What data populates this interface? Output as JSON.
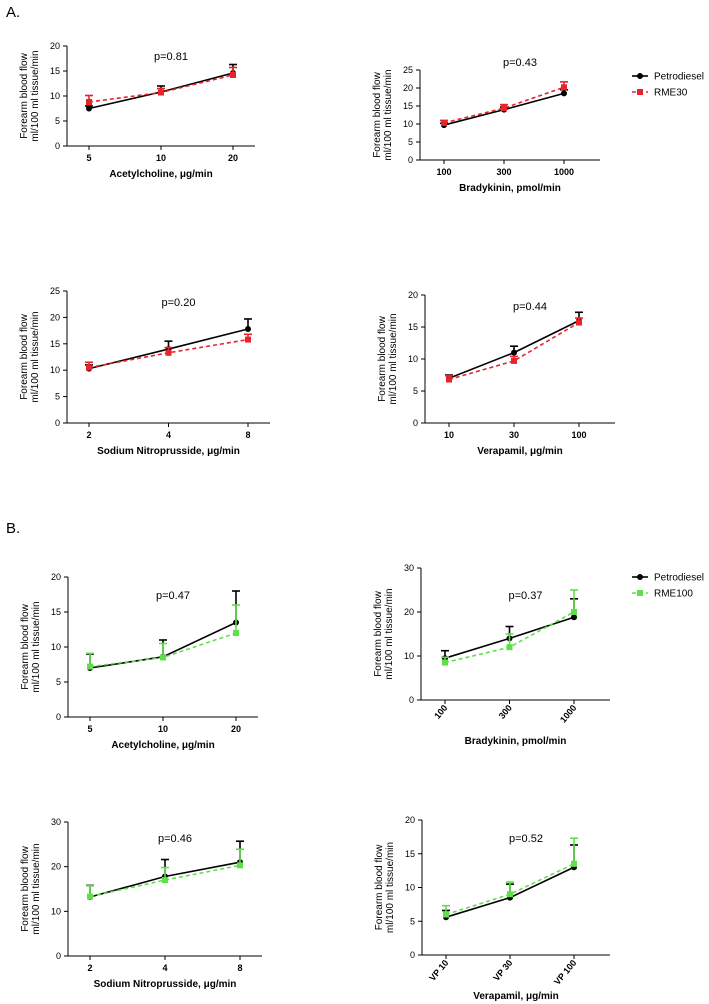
{
  "labels": {
    "section_a": "A.",
    "section_b": "B."
  },
  "colors": {
    "petrodiesel": "#000000",
    "rme30": "#e8232b",
    "rme100": "#5fe04a"
  },
  "chart_data": [
    {
      "id": "a-ach",
      "type": "line",
      "title": "p=0.81",
      "xlabel": "Acetylcholine, μg/min",
      "ylabel": [
        "Forearm blood flow",
        "ml/100 ml tissue/min"
      ],
      "categories": [
        "5",
        "10",
        "20"
      ],
      "ylim": [
        0,
        20
      ],
      "yticks": [
        0,
        5,
        10,
        15,
        20
      ],
      "series": [
        {
          "name": "Petrodiesel",
          "values": [
            7.5,
            10.8,
            14.6
          ],
          "errors": [
            0.5,
            1.2,
            1.7
          ]
        },
        {
          "name": "RME30",
          "values": [
            8.8,
            10.7,
            14.2
          ],
          "errors": [
            1.3,
            0.8,
            1.5
          ]
        }
      ]
    },
    {
      "id": "a-bk",
      "type": "line",
      "title": "p=0.43",
      "xlabel": "Bradykinin, pmol/min",
      "ylabel": [
        "Forearm blood flow",
        "ml/100 ml tissue/min"
      ],
      "categories": [
        "100",
        "300",
        "1000"
      ],
      "ylim": [
        0,
        25
      ],
      "yticks": [
        0,
        5,
        10,
        15,
        20,
        25
      ],
      "legend": [
        "Petrodiesel",
        "RME30"
      ],
      "series": [
        {
          "name": "Petrodiesel",
          "values": [
            9.7,
            14.0,
            18.5
          ],
          "errors": [
            0.5,
            0.7,
            1.0
          ]
        },
        {
          "name": "RME30",
          "values": [
            10.3,
            14.4,
            20.2
          ],
          "errors": [
            0.7,
            1.0,
            1.5
          ]
        }
      ]
    },
    {
      "id": "a-snp",
      "type": "line",
      "title": "p=0.20",
      "xlabel": "Sodium Nitroprusside, μg/min",
      "ylabel": [
        "Forearm blood flow",
        "ml/100 ml tissue/min"
      ],
      "categories": [
        "2",
        "4",
        "8"
      ],
      "ylim": [
        0,
        25
      ],
      "yticks": [
        0,
        5,
        10,
        15,
        20,
        25
      ],
      "series": [
        {
          "name": "Petrodiesel",
          "values": [
            10.3,
            14.0,
            17.8
          ],
          "errors": [
            0.7,
            1.5,
            1.9
          ]
        },
        {
          "name": "RME30",
          "values": [
            10.5,
            13.3,
            15.8
          ],
          "errors": [
            1.0,
            1.0,
            1.0
          ]
        }
      ]
    },
    {
      "id": "a-vp",
      "type": "line",
      "title": "p=0.44",
      "xlabel": "Verapamil, μg/min",
      "ylabel": [
        "Forearm blood flow",
        "ml/100 ml tissue/min"
      ],
      "categories": [
        "10",
        "30",
        "100"
      ],
      "ylim": [
        0,
        20
      ],
      "yticks": [
        0,
        5,
        10,
        15,
        20
      ],
      "series": [
        {
          "name": "Petrodiesel",
          "values": [
            7.0,
            11.0,
            16.0
          ],
          "errors": [
            0.5,
            1.0,
            1.3
          ]
        },
        {
          "name": "RME30",
          "values": [
            6.8,
            9.7,
            15.7
          ],
          "errors": [
            0.6,
            0.7,
            0.7
          ]
        }
      ]
    },
    {
      "id": "b-ach",
      "type": "line",
      "title": "p=0.47",
      "xlabel": "Acetylcholine, μg/min",
      "ylabel": [
        "Forearm blood flow",
        "ml/100 ml tissue/min"
      ],
      "categories": [
        "5",
        "10",
        "20"
      ],
      "ylim": [
        0,
        20
      ],
      "yticks": [
        0,
        5,
        10,
        15,
        20
      ],
      "series": [
        {
          "name": "Petrodiesel",
          "values": [
            7.0,
            8.6,
            13.5
          ],
          "errors": [
            2.0,
            2.4,
            4.5
          ]
        },
        {
          "name": "RME100",
          "values": [
            7.2,
            8.5,
            12.0
          ],
          "errors": [
            1.9,
            2.0,
            4.0
          ]
        }
      ]
    },
    {
      "id": "b-bk",
      "type": "line",
      "title": "p=0.37",
      "xlabel": "Bradykinin, pmol/min",
      "ylabel": [
        "Forearm blood flow",
        "ml/100 ml tissue/min"
      ],
      "categories": [
        "100",
        "300",
        "1000"
      ],
      "ylim": [
        0,
        30
      ],
      "yticks": [
        0,
        10,
        20,
        30
      ],
      "legend": [
        "Petrodiesel",
        "RME100"
      ],
      "series": [
        {
          "name": "Petrodiesel",
          "values": [
            9.5,
            14.0,
            18.8
          ],
          "errors": [
            1.7,
            2.7,
            4.2
          ]
        },
        {
          "name": "RME100",
          "values": [
            8.5,
            12.0,
            20.0
          ],
          "errors": [
            1.2,
            3.0,
            5.0
          ]
        }
      ]
    },
    {
      "id": "b-snp",
      "type": "line",
      "title": "p=0.46",
      "xlabel": "Sodium Nitroprusside, μg/min",
      "ylabel": [
        "Forearm blood flow",
        "ml/100 ml tissue/min"
      ],
      "categories": [
        "2",
        "4",
        "8"
      ],
      "ylim": [
        0,
        30
      ],
      "yticks": [
        0,
        10,
        20,
        30
      ],
      "series": [
        {
          "name": "Petrodiesel",
          "values": [
            13.2,
            17.8,
            21.0
          ],
          "errors": [
            2.6,
            3.8,
            4.7
          ]
        },
        {
          "name": "RME100",
          "values": [
            13.3,
            17.0,
            20.3
          ],
          "errors": [
            2.4,
            2.8,
            3.6
          ]
        }
      ]
    },
    {
      "id": "b-vp",
      "type": "line",
      "title": "p=0.52",
      "xlabel": "Verapamil, μg/min",
      "ylabel": [
        "Forearm blood flow",
        "ml/100 ml tissue/min"
      ],
      "categories": [
        "VP 10",
        "VP 30",
        "VP 100"
      ],
      "ylim": [
        0,
        20
      ],
      "yticks": [
        0,
        5,
        10,
        15,
        20
      ],
      "series": [
        {
          "name": "Petrodiesel",
          "values": [
            5.6,
            8.5,
            13.0
          ],
          "errors": [
            1.0,
            2.0,
            3.3
          ]
        },
        {
          "name": "RME100",
          "values": [
            6.0,
            9.0,
            13.5
          ],
          "errors": [
            1.3,
            1.8,
            3.8
          ]
        }
      ]
    }
  ]
}
